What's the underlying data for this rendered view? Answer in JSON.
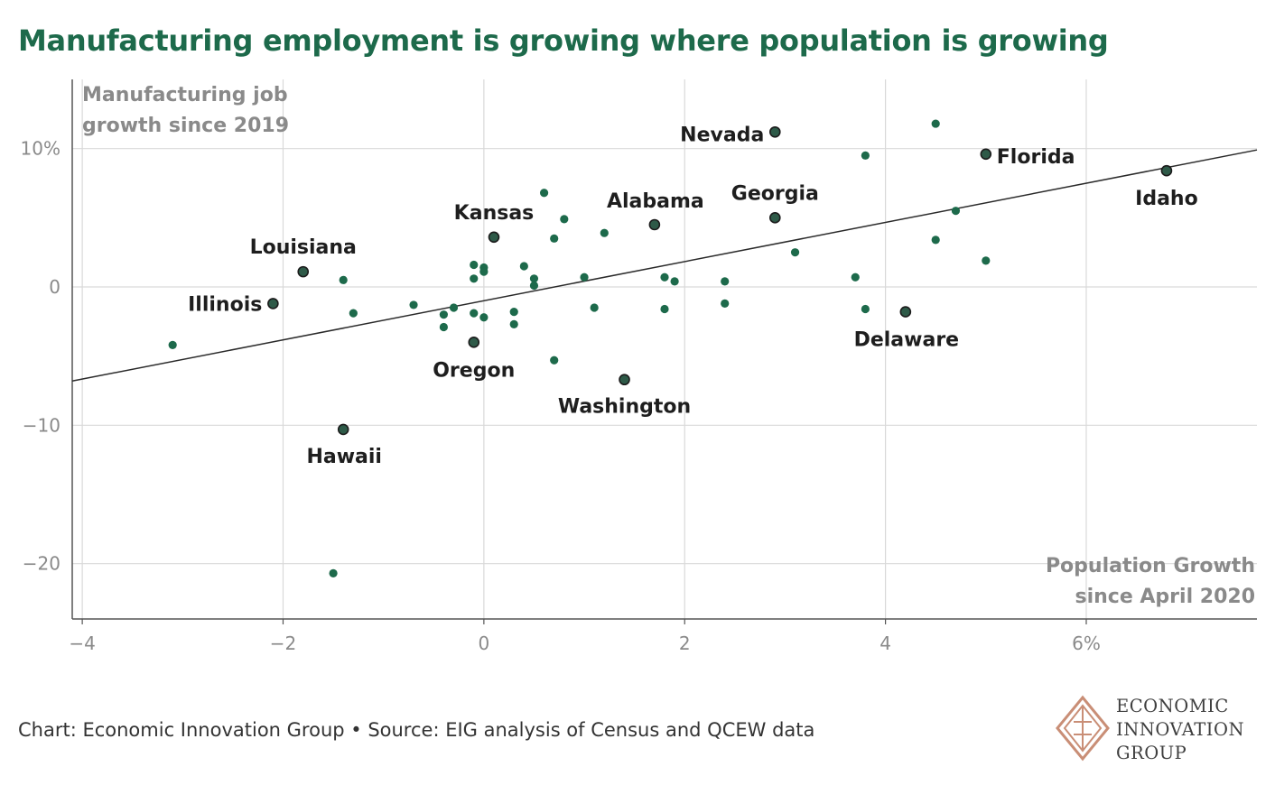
{
  "title": "Manufacturing employment is growing where population is growing",
  "credit": "Chart: Economic Innovation Group • Source: EIG analysis of Census and QCEW data",
  "logo": {
    "icon": "eig-diamond-icon",
    "lines": [
      "ECONOMIC",
      "INNOVATION",
      "GROUP"
    ]
  },
  "colors": {
    "title": "#1d6a4b",
    "point": "#1d6a4b",
    "labeled_point_fill": "#2e5a48",
    "labeled_point_stroke": "#1c1c1c",
    "trendline": "#2a2a2a",
    "grid": "#d9d9d9",
    "axis_label": "#8a8a8a",
    "logo": "#c98e76"
  },
  "chart_data": {
    "type": "scatter",
    "ylabel": "Manufacturing job growth since 2019",
    "xlabel": "Population Growth since April 2020",
    "xlim": [
      -4.1,
      7.7
    ],
    "ylim": [
      -24,
      15
    ],
    "x_ticks": [
      {
        "value": -4,
        "label": "−4"
      },
      {
        "value": -2,
        "label": "−2"
      },
      {
        "value": 0,
        "label": "0"
      },
      {
        "value": 2,
        "label": "2"
      },
      {
        "value": 4,
        "label": "4"
      },
      {
        "value": 6,
        "label": "6%"
      }
    ],
    "y_ticks": [
      {
        "value": 10,
        "label": "10%"
      },
      {
        "value": 0,
        "label": "0"
      },
      {
        "value": -10,
        "label": "−10"
      },
      {
        "value": -20,
        "label": "−20"
      }
    ],
    "grid": true,
    "trendline": {
      "x": [
        -4.1,
        7.7
      ],
      "y": [
        -6.8,
        9.9
      ]
    },
    "labeled_points": [
      {
        "name": "Nevada",
        "x": 2.9,
        "y": 11.2
      },
      {
        "name": "Florida",
        "x": 5.0,
        "y": 9.6
      },
      {
        "name": "Idaho",
        "x": 6.8,
        "y": 8.4
      },
      {
        "name": "Georgia",
        "x": 2.9,
        "y": 5.0
      },
      {
        "name": "Alabama",
        "x": 1.7,
        "y": 4.5
      },
      {
        "name": "Kansas",
        "x": 0.1,
        "y": 3.6
      },
      {
        "name": "Louisiana",
        "x": -1.8,
        "y": 1.1
      },
      {
        "name": "Illinois",
        "x": -2.1,
        "y": -1.2
      },
      {
        "name": "Oregon",
        "x": -0.1,
        "y": -4.0
      },
      {
        "name": "Washington",
        "x": 1.4,
        "y": -6.7
      },
      {
        "name": "Delaware",
        "x": 4.2,
        "y": -1.8
      },
      {
        "name": "Hawaii",
        "x": -1.4,
        "y": -10.3
      }
    ],
    "points": [
      {
        "x": 4.5,
        "y": 11.8
      },
      {
        "x": 3.8,
        "y": 9.5
      },
      {
        "x": 0.6,
        "y": 6.8
      },
      {
        "x": 4.7,
        "y": 5.5
      },
      {
        "x": 0.8,
        "y": 4.9
      },
      {
        "x": 1.2,
        "y": 3.9
      },
      {
        "x": 0.7,
        "y": 3.5
      },
      {
        "x": 4.5,
        "y": 3.4
      },
      {
        "x": 3.1,
        "y": 2.5
      },
      {
        "x": 5.0,
        "y": 1.9
      },
      {
        "x": -0.1,
        "y": 1.6
      },
      {
        "x": 0.0,
        "y": 1.4
      },
      {
        "x": 0.4,
        "y": 1.5
      },
      {
        "x": 0.0,
        "y": 1.1
      },
      {
        "x": -0.1,
        "y": 0.6
      },
      {
        "x": 0.5,
        "y": 0.6
      },
      {
        "x": 1.0,
        "y": 0.7
      },
      {
        "x": 1.8,
        "y": 0.7
      },
      {
        "x": 1.9,
        "y": 0.4
      },
      {
        "x": 2.4,
        "y": 0.4
      },
      {
        "x": 3.7,
        "y": 0.7
      },
      {
        "x": 0.5,
        "y": 0.1
      },
      {
        "x": -1.4,
        "y": 0.5
      },
      {
        "x": -0.7,
        "y": -1.3
      },
      {
        "x": -0.3,
        "y": -1.5
      },
      {
        "x": -0.4,
        "y": -2.0
      },
      {
        "x": -0.1,
        "y": -1.9
      },
      {
        "x": 0.0,
        "y": -2.2
      },
      {
        "x": 0.3,
        "y": -1.8
      },
      {
        "x": 0.3,
        "y": -2.7
      },
      {
        "x": -0.4,
        "y": -2.9
      },
      {
        "x": 1.1,
        "y": -1.5
      },
      {
        "x": 1.8,
        "y": -1.6
      },
      {
        "x": 2.4,
        "y": -1.2
      },
      {
        "x": 3.8,
        "y": -1.6
      },
      {
        "x": -1.3,
        "y": -1.9
      },
      {
        "x": -3.1,
        "y": -4.2
      },
      {
        "x": 0.7,
        "y": -5.3
      },
      {
        "x": -1.5,
        "y": -20.7
      }
    ]
  }
}
